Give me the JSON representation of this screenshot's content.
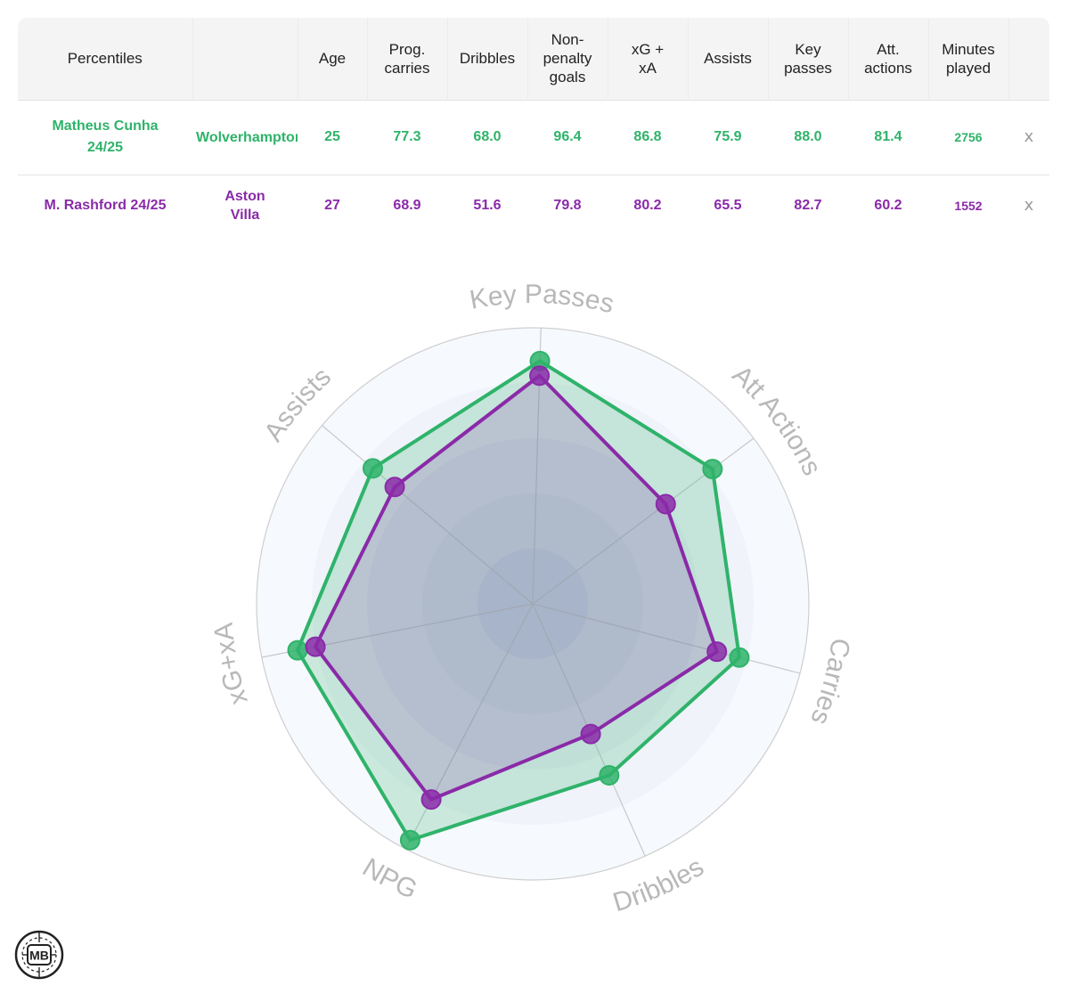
{
  "table": {
    "headers": [
      "Percentiles",
      "",
      "Age",
      "Prog. carries",
      "Dribbles",
      "Non-penalty goals",
      "xG + xA",
      "Assists",
      "Key passes",
      "Att. actions",
      "Minutes played",
      ""
    ],
    "rows": [
      {
        "player": "Matheus Cunha 24/25",
        "team": "Wolverhampton",
        "age": "25",
        "prog_carries": "77.3",
        "dribbles": "68.0",
        "npg": "96.4",
        "xg_xa": "86.8",
        "assists": "75.9",
        "key_passes": "88.0",
        "att_actions": "81.4",
        "minutes": "2756",
        "remove": "x"
      },
      {
        "player": "M. Rashford 24/25",
        "team": "Aston Villa",
        "age": "27",
        "prog_carries": "68.9",
        "dribbles": "51.6",
        "npg": "79.8",
        "xg_xa": "80.2",
        "assists": "65.5",
        "key_passes": "82.7",
        "att_actions": "60.2",
        "minutes": "1552",
        "remove": "x"
      }
    ]
  },
  "colors": {
    "series_a": "#2fb36a",
    "series_b": "#8a2aa8",
    "text_muted": "#9a9a9a"
  },
  "logo": {
    "icon": "mb-logo-icon",
    "text": "MB"
  },
  "chart_data": {
    "type": "radar",
    "axes": [
      "Key Passes",
      "Att Actions",
      "Carries",
      "Dribbles",
      "NPG",
      "xG+xA",
      "Assists"
    ],
    "range": [
      0,
      100
    ],
    "series": [
      {
        "name": "Matheus Cunha 24/25",
        "color": "#2fb36a",
        "values": [
          88.0,
          81.4,
          77.3,
          68.0,
          96.4,
          86.8,
          75.9
        ]
      },
      {
        "name": "M. Rashford 24/25",
        "color": "#8a2aa8",
        "values": [
          82.7,
          60.2,
          68.9,
          51.6,
          79.8,
          80.2,
          65.5
        ]
      }
    ]
  }
}
